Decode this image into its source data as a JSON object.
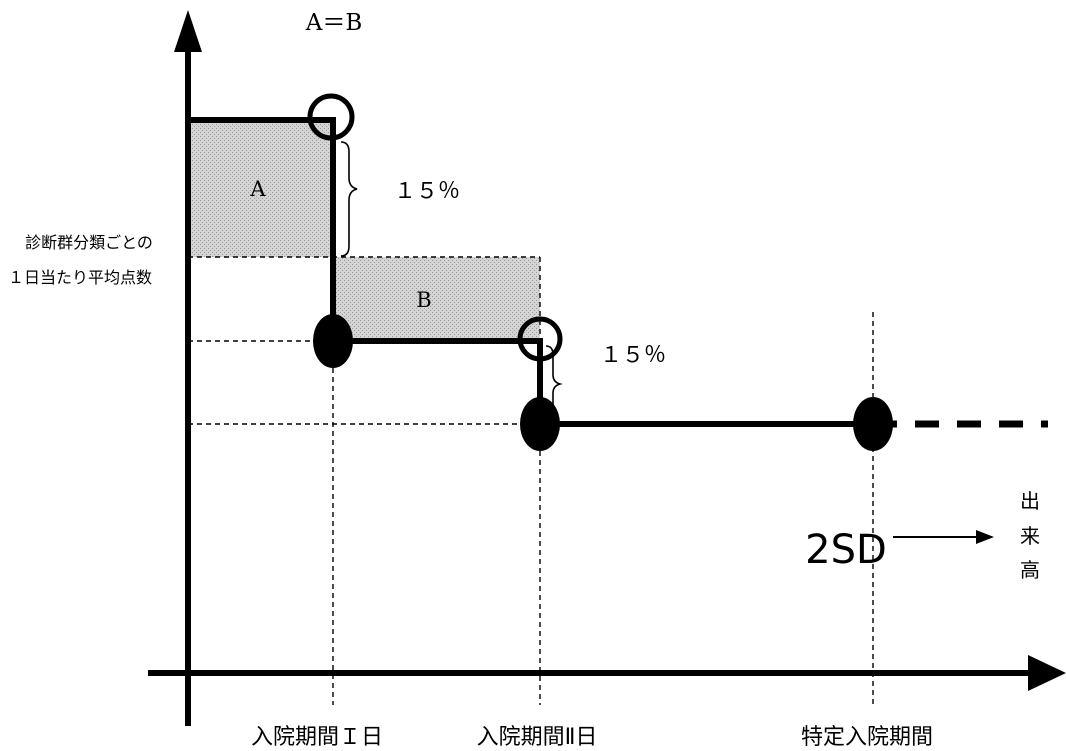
{
  "labels": {
    "title_equation": "A＝B",
    "area_a": "A",
    "area_b": "B",
    "drop_1": "１５％",
    "drop_2": "１５％",
    "y_axis_line1": "診断群分類ごとの",
    "y_axis_line2": "１日当たり平均点数",
    "x_tick_1": "入院期間Ｉ日",
    "x_tick_2": "入院期間Ⅱ日",
    "x_tick_3": "特定入院期間",
    "sd_label": "2SD",
    "payment_arrow_label": [
      "出",
      "来",
      "高"
    ]
  },
  "colors": {
    "line": "#000000",
    "shade": "#d9d9d9",
    "background": "#ffffff"
  }
}
